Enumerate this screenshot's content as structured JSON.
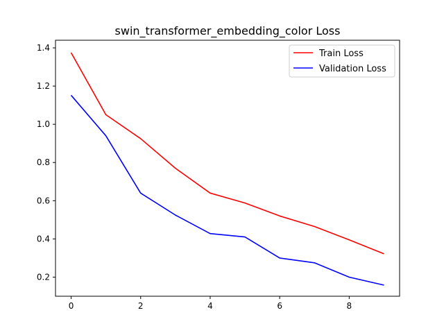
{
  "chart_data": {
    "type": "line",
    "title": "swin_transformer_embedding_color Loss",
    "xlabel": "",
    "ylabel": "",
    "x": [
      0,
      1,
      2,
      3,
      4,
      5,
      6,
      7,
      8,
      9
    ],
    "xlim": [
      -0.45,
      9.45
    ],
    "ylim": [
      0.1,
      1.44
    ],
    "xticks": [
      0,
      2,
      4,
      6,
      8
    ],
    "yticks": [
      0.2,
      0.4,
      0.6,
      0.8,
      1.0,
      1.2,
      1.4
    ],
    "xtick_labels": [
      "0",
      "2",
      "4",
      "6",
      "8"
    ],
    "ytick_labels": [
      "0.2",
      "0.4",
      "0.6",
      "0.8",
      "1.0",
      "1.2",
      "1.4"
    ],
    "grid": false,
    "legend_position": "top-right",
    "series": [
      {
        "name": "Train Loss",
        "color": "#ff0000",
        "values": [
          1.375,
          1.05,
          0.925,
          0.77,
          0.64,
          0.588,
          0.52,
          0.465,
          0.395,
          0.322
        ]
      },
      {
        "name": "Validation Loss",
        "color": "#0000ff",
        "values": [
          1.152,
          0.94,
          0.64,
          0.525,
          0.428,
          0.41,
          0.3,
          0.275,
          0.2,
          0.158
        ]
      }
    ]
  }
}
